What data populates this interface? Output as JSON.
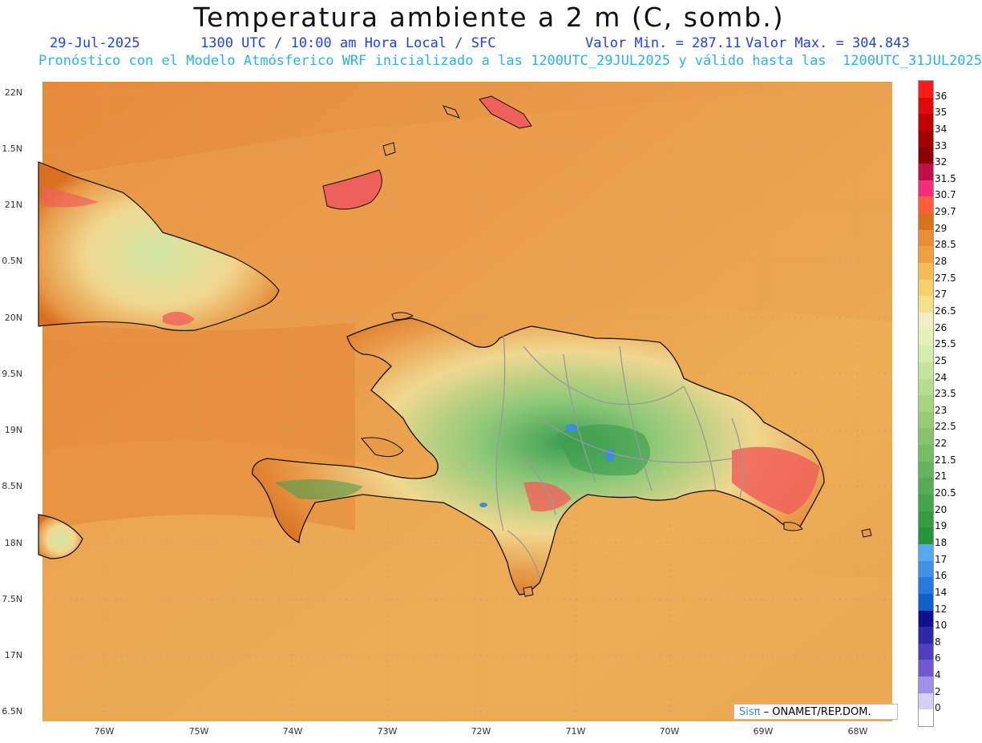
{
  "header": {
    "title": "Temperatura ambiente a 2 m (C, somb.)",
    "date": "29-Jul-2025",
    "time_label": "1300 UTC / 10:00 am Hora Local / SFC",
    "min_label": "Valor Min. = 287.11",
    "max_label": "Valor Max. = 304.843",
    "subtitle": "Pronóstico con el Modelo Atmósferico WRF inicializado a las 1200UTC_29JUL2025 y válido hasta las  1200UTC_31JUL2025"
  },
  "map": {
    "lat_ticks": [
      "22N",
      "1.5N",
      "21N",
      "0.5N",
      "20N",
      "9.5N",
      "19N",
      "8.5N",
      "18N",
      "7.5N",
      "17N",
      "6.5N"
    ],
    "lon_ticks": [
      "76W",
      "75W",
      "74W",
      "73W",
      "72W",
      "71W",
      "70W",
      "69W",
      "68W"
    ],
    "colors": {
      "sea_light": "#eeaf55",
      "sea_mid": "#e9a04c",
      "sea_dark": "#e58a3a",
      "land_hot": "#d87020",
      "land_warm": "#e89a48",
      "land_mild": "#f0d890",
      "land_cool": "#8cc878",
      "land_cold": "#3c9e50",
      "lake": "#3e8ce0",
      "coast": "#111111",
      "border": "#999999"
    }
  },
  "legend": {
    "labels": [
      "36",
      "35",
      "34",
      "33",
      "32",
      "31.5",
      "30.7",
      "29.7",
      "29",
      "28.5",
      "28",
      "27.5",
      "27",
      "26.5",
      "26",
      "25.5",
      "25",
      "24",
      "23.5",
      "23",
      "22.5",
      "22",
      "21.5",
      "21",
      "20.5",
      "20",
      "19",
      "18",
      "17",
      "16",
      "14",
      "12",
      "10",
      "8",
      "6",
      "4",
      "2",
      "0"
    ],
    "colors": [
      "#ff1a1a",
      "#e00a0a",
      "#c00000",
      "#a00000",
      "#8a0000",
      "#c0104a",
      "#f0307a",
      "#ff5e3a",
      "#d8731c",
      "#ea8c38",
      "#f0a040",
      "#f4bc52",
      "#f6cf68",
      "#f3e089",
      "#eeeec2",
      "#e4f0b8",
      "#d6ecaa",
      "#c6e49c",
      "#b6dc8e",
      "#a6d480",
      "#96cc74",
      "#86c46c",
      "#76bc64",
      "#66b45c",
      "#56ac54",
      "#46a44c",
      "#369c44",
      "#26943c",
      "#58a8f0",
      "#4090e8",
      "#2878e0",
      "#1060c8",
      "#101090",
      "#3028a8",
      "#5040c0",
      "#7058d0",
      "#a090e8",
      "#d8d0f4",
      "#ffffff"
    ]
  },
  "credit": {
    "logo_text": "Sisπ",
    "text": "– ONAMET/REP.DOM."
  }
}
